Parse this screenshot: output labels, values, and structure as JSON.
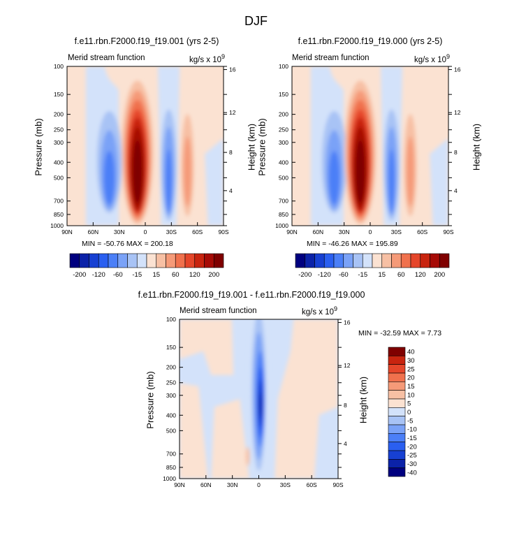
{
  "title": "DJF",
  "panels": [
    {
      "id": "p1",
      "title": "f.e11.rbn.F2000.f19_f19.001 (yrs 2-5)",
      "left_label": "Merid stream function",
      "units": "kg/s x 10",
      "units_exp": "9",
      "ylabel": "Pressure (mb)",
      "ylabel_right": "Height (km)",
      "stats": "MIN = -50.76  MAX = 200.18"
    },
    {
      "id": "p2",
      "title": "f.e11.rbn.F2000.f19_f19.000 (yrs 2-5)",
      "left_label": "Merid stream function",
      "units": "kg/s x 10",
      "units_exp": "9",
      "ylabel": "Pressure (mb)",
      "ylabel_right": "Height (km)",
      "stats": "MIN = -46.26  MAX = 195.89"
    },
    {
      "id": "p3",
      "title": "f.e11.rbn.F2000.f19_f19.001 - f.e11.rbn.F2000.f19_f19.000",
      "left_label": "Merid stream function",
      "units": "kg/s x 10",
      "units_exp": "9",
      "ylabel": "Pressure (mb)",
      "ylabel_right": "Height (km)",
      "stats": "MIN = -32.59  MAX =   7.73"
    }
  ],
  "chart_data": {
    "type": "heatmap",
    "x_ticks": [
      "90N",
      "60N",
      "30N",
      "0",
      "30S",
      "60S",
      "90S"
    ],
    "y_ticks_pressure": [
      "100",
      "150",
      "200",
      "250",
      "300",
      "400",
      "500",
      "700",
      "850",
      "1000"
    ],
    "y_ticks_height": [
      "16",
      "12",
      "8",
      "4"
    ],
    "pressure_range_mb": [
      100,
      1000
    ],
    "latitude_range": [
      90,
      -90
    ],
    "colorbar_top": {
      "labels": [
        "-200",
        "-120",
        "-60",
        "-15",
        "15",
        "60",
        "120",
        "200"
      ],
      "colors": [
        "#00007f",
        "#0b22a8",
        "#1740d2",
        "#2a5ff0",
        "#4b7ff7",
        "#7aa2f7",
        "#a8c3f5",
        "#d3e2fa",
        "#fbe2d2",
        "#f7c0a4",
        "#f59a78",
        "#f0714d",
        "#e5462a",
        "#c8240f",
        "#a60b06",
        "#7f0000"
      ]
    },
    "colorbar_diff": {
      "labels": [
        "40",
        "30",
        "25",
        "20",
        "15",
        "10",
        "5",
        "0",
        "-5",
        "-10",
        "-15",
        "-20",
        "-25",
        "-30",
        "-40"
      ],
      "colors": [
        "#7f0000",
        "#c8240f",
        "#e5462a",
        "#f0714d",
        "#f59a78",
        "#f7c0a4",
        "#fbe2d2",
        "#d3e2fa",
        "#a8c3f5",
        "#7aa2f7",
        "#4b7ff7",
        "#2a5ff0",
        "#1740d2",
        "#0b22a8",
        "#00007f"
      ]
    }
  }
}
